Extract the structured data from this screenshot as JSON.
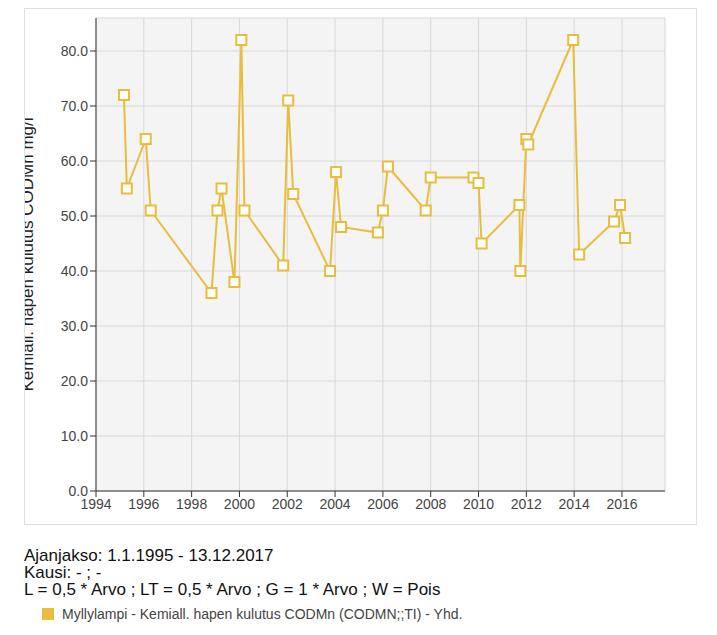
{
  "chart_data": {
    "type": "line",
    "y_label": "Kemiall. hapen kulutus CODMn mg/l",
    "x": [
      1995.17,
      1995.29,
      1996.08,
      1996.29,
      1998.83,
      1999.08,
      1999.25,
      1999.79,
      2000.08,
      2000.21,
      2001.83,
      2002.04,
      2002.25,
      2003.79,
      2004.04,
      2004.25,
      2005.79,
      2006.0,
      2006.21,
      2007.79,
      2008.0,
      2009.79,
      2010.0,
      2010.13,
      2011.71,
      2011.75,
      2012.0,
      2012.08,
      2013.96,
      2014.21,
      2015.67,
      2015.92,
      2016.13
    ],
    "series": [
      {
        "name": "Myllylampi - Kemiall. hapen kulutus CODMn (CODMN;;TI) - Yhd.",
        "color": "#e8bd3c",
        "marker": "square",
        "values": [
          72,
          55,
          64,
          51,
          36,
          51,
          55,
          38,
          82,
          51,
          41,
          71,
          54,
          40,
          58,
          48,
          47,
          51,
          59,
          51,
          57,
          57,
          56,
          45,
          52,
          40,
          64,
          63,
          82,
          43,
          49,
          52,
          46
        ]
      }
    ],
    "xlim": [
      1994,
      2017.8
    ],
    "xticks": [
      1994,
      1996,
      1998,
      2000,
      2002,
      2004,
      2006,
      2008,
      2010,
      2012,
      2014,
      2016
    ],
    "ylim": [
      0,
      86
    ],
    "yticks": [
      {
        "value": 0,
        "label": "0.0"
      },
      {
        "value": 10,
        "label": "10.0"
      },
      {
        "value": 20,
        "label": "20.0"
      },
      {
        "value": 30,
        "label": "30.0"
      },
      {
        "value": 40,
        "label": "40.0"
      },
      {
        "value": 50,
        "label": "50.0"
      },
      {
        "value": 60,
        "label": "60.0"
      },
      {
        "value": 70,
        "label": "70.0"
      },
      {
        "value": 80,
        "label": "80.0"
      }
    ],
    "grid": true,
    "legend": "bottom",
    "annotations": [
      "Ajanjakso: 1.1.1995 - 13.12.2017",
      "Kausi: - ; -",
      "L = 0,5 * Arvo ; LT = 0,5 * Arvo ; G = 1 * Arvo ; W = Pois"
    ]
  }
}
